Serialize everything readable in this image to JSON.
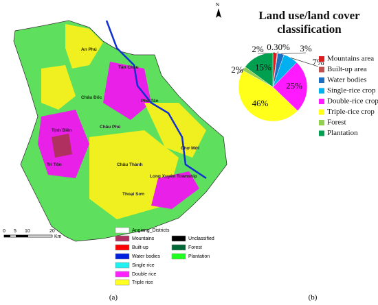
{
  "map": {
    "districts": [
      "An Phú",
      "Tân Châu",
      "Châu Đốc",
      "Phú Tân",
      "Châu Phú",
      "Tịnh Biên",
      "Chợ Mới",
      "Tri Tôn",
      "Châu Thành",
      "Long Xuyên Township",
      "Thoại Sơn"
    ],
    "north": "N",
    "scale_labels": [
      "0",
      "5",
      "10",
      "20",
      "Km"
    ],
    "legend": [
      "Angiang_Districts",
      "Mountains",
      "Built-up",
      "Water bodies",
      "Single rice",
      "Double rice",
      "Triple rice",
      "Unclassified",
      "Forest",
      "Plantation"
    ],
    "caption": "(a)"
  },
  "chart_data": {
    "type": "pie",
    "title": [
      "Land use/land cover",
      "classification"
    ],
    "categories": [
      "Mountains area",
      "Built-up area",
      "Water bodies",
      "Single-rice crop",
      "Double-rice crop",
      "Triple-rice crop",
      "Forest",
      "Plantation"
    ],
    "values": [
      2,
      0.3,
      3,
      7,
      25,
      46,
      2,
      15
    ],
    "value_labels": [
      "2%",
      "0.30%",
      "3%",
      "7%",
      "25%",
      "46%",
      "2%",
      "15%"
    ],
    "colors": [
      "#d81e1e",
      "#c0504d",
      "#1f6fc0",
      "#00b0f0",
      "#ff1aff",
      "#ffff1a",
      "#92d050",
      "#00a050"
    ],
    "caption": "(b)"
  }
}
